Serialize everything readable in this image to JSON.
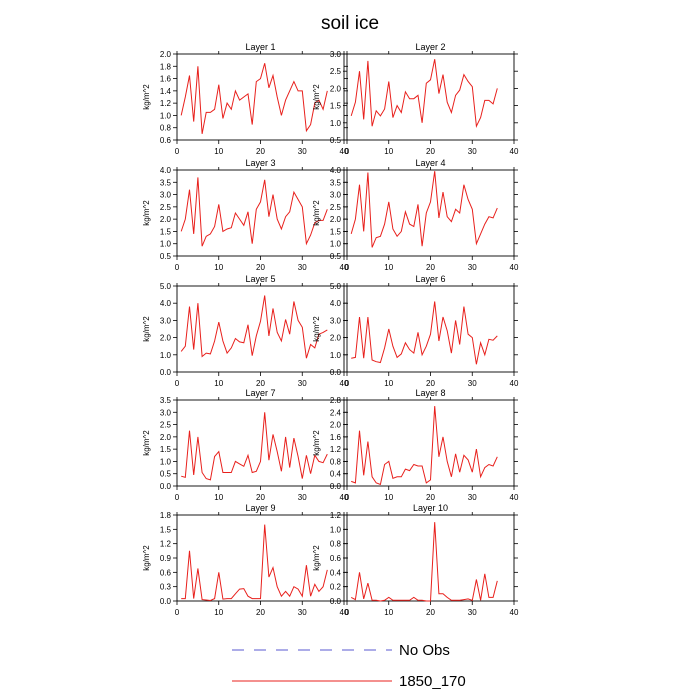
{
  "chart_data": {
    "type": "line",
    "title": "soil ice",
    "series_color": "#e8201c",
    "no_obs_color": "#5a5ad0",
    "legend": {
      "placement": "bottom-center",
      "entries": [
        {
          "label": "No Obs",
          "style": "dashed",
          "color": "#5a5ad0"
        },
        {
          "label": "1850_170",
          "style": "solid",
          "color": "#e8201c"
        }
      ]
    },
    "x": [
      1,
      2,
      3,
      4,
      5,
      6,
      7,
      8,
      9,
      10,
      11,
      12,
      13,
      14,
      15,
      16,
      17,
      18,
      19,
      20,
      21,
      22,
      23,
      24,
      25,
      26,
      27,
      28,
      29,
      30,
      31,
      32,
      33,
      34,
      35,
      36
    ],
    "xlim": [
      0,
      40
    ],
    "xticks": [
      "0",
      "10",
      "20",
      "30",
      "40"
    ],
    "panels": [
      {
        "title": "Layer 1",
        "ylabel": "kg/m^2",
        "ylim": [
          0.6,
          2.0
        ],
        "yticks": [
          "0.6",
          "0.8",
          "1.0",
          "1.2",
          "1.4",
          "1.6",
          "1.8",
          "2.0"
        ],
        "values": [
          1.0,
          1.3,
          1.65,
          0.9,
          1.8,
          0.7,
          1.05,
          1.05,
          1.1,
          1.5,
          0.95,
          1.2,
          1.1,
          1.4,
          1.25,
          1.3,
          1.35,
          0.85,
          1.55,
          1.6,
          1.85,
          1.45,
          1.65,
          1.3,
          1.0,
          1.25,
          1.4,
          1.55,
          1.4,
          1.4,
          0.75,
          0.85,
          1.2,
          1.25,
          1.1,
          1.4
        ]
      },
      {
        "title": "Layer 2",
        "ylabel": "kg/m^2",
        "ylim": [
          0.5,
          3.0
        ],
        "yticks": [
          "0.5",
          "1.0",
          "1.5",
          "2.0",
          "2.5",
          "3.0"
        ],
        "values": [
          1.2,
          1.6,
          2.5,
          1.1,
          2.8,
          0.9,
          1.35,
          1.2,
          1.4,
          2.2,
          1.15,
          1.5,
          1.3,
          1.9,
          1.7,
          1.7,
          1.8,
          1.0,
          2.15,
          2.25,
          2.85,
          1.85,
          2.4,
          1.6,
          1.3,
          1.8,
          1.95,
          2.4,
          2.2,
          2.05,
          0.9,
          1.15,
          1.65,
          1.65,
          1.55,
          2.0
        ]
      },
      {
        "title": "Layer 3",
        "ylabel": "kg/m^2",
        "ylim": [
          0.5,
          4.0
        ],
        "yticks": [
          "0.5",
          "1.0",
          "1.5",
          "2.0",
          "2.5",
          "3.0",
          "3.5",
          "4.0"
        ],
        "values": [
          1.5,
          2.0,
          3.2,
          1.4,
          3.7,
          0.9,
          1.3,
          1.4,
          1.7,
          2.6,
          1.5,
          1.6,
          1.65,
          2.25,
          2.0,
          1.75,
          2.3,
          1.0,
          2.4,
          2.7,
          3.6,
          2.1,
          3.0,
          2.0,
          1.6,
          2.1,
          2.3,
          3.1,
          2.8,
          2.5,
          1.0,
          1.35,
          1.85,
          1.95,
          1.95,
          2.4
        ]
      },
      {
        "title": "Layer 4",
        "ylabel": "kg/m^2",
        "ylim": [
          0.5,
          4.0
        ],
        "yticks": [
          "0.5",
          "1.0",
          "1.5",
          "2.0",
          "2.5",
          "3.0",
          "3.5",
          "4.0"
        ],
        "values": [
          1.4,
          2.0,
          3.4,
          1.5,
          3.9,
          0.85,
          1.25,
          1.3,
          1.8,
          2.7,
          1.6,
          1.3,
          1.5,
          2.3,
          1.8,
          1.7,
          2.6,
          0.9,
          2.25,
          2.7,
          3.95,
          2.05,
          3.1,
          2.1,
          1.9,
          2.4,
          2.25,
          3.4,
          2.8,
          2.4,
          1.0,
          1.4,
          1.8,
          2.1,
          2.05,
          2.45
        ]
      },
      {
        "title": "Layer 5",
        "ylabel": "kg/m^2",
        "ylim": [
          0.0,
          5.0
        ],
        "yticks": [
          "0.0",
          "1.0",
          "2.0",
          "3.0",
          "4.0",
          "5.0"
        ],
        "values": [
          1.2,
          1.5,
          3.8,
          1.3,
          4.0,
          0.9,
          1.1,
          1.05,
          1.8,
          2.9,
          1.8,
          1.1,
          1.4,
          1.95,
          1.75,
          1.7,
          2.75,
          0.95,
          2.1,
          2.95,
          4.45,
          2.1,
          3.7,
          2.3,
          1.8,
          3.05,
          2.2,
          4.1,
          3.0,
          2.6,
          0.8,
          1.6,
          1.4,
          2.2,
          2.3,
          2.45
        ]
      },
      {
        "title": "Layer 6",
        "ylabel": "kg/m^2",
        "ylim": [
          0.0,
          5.0
        ],
        "yticks": [
          "0.0",
          "1.0",
          "2.0",
          "3.0",
          "4.0",
          "5.0"
        ],
        "values": [
          0.8,
          0.85,
          3.2,
          0.8,
          3.2,
          0.7,
          0.6,
          0.55,
          1.4,
          2.5,
          1.5,
          0.85,
          1.05,
          1.7,
          1.3,
          1.1,
          2.3,
          1.0,
          1.5,
          2.2,
          4.1,
          1.8,
          3.2,
          2.4,
          1.1,
          3.0,
          1.6,
          3.8,
          2.2,
          2.0,
          0.45,
          1.7,
          1.0,
          1.9,
          1.85,
          2.1
        ]
      },
      {
        "title": "Layer 7",
        "ylabel": "kg/m^2",
        "ylim": [
          0.0,
          3.5
        ],
        "yticks": [
          "0.0",
          "0.5",
          "1.0",
          "1.5",
          "2.0",
          "2.5",
          "3.0",
          "3.5"
        ],
        "values": [
          0.4,
          0.35,
          2.25,
          0.45,
          2.0,
          0.55,
          0.3,
          0.25,
          1.2,
          1.4,
          0.55,
          0.55,
          0.55,
          1.0,
          0.9,
          0.8,
          1.25,
          0.55,
          0.6,
          1.0,
          3.0,
          1.05,
          2.1,
          1.4,
          0.6,
          2.0,
          0.75,
          1.95,
          1.2,
          0.3,
          1.25,
          0.5,
          1.25,
          1.0,
          0.95,
          1.3
        ]
      },
      {
        "title": "Layer 8",
        "ylabel": "kg/m^2",
        "ylim": [
          0.0,
          2.8
        ],
        "yticks": [
          "0.0",
          "0.4",
          "0.8",
          "1.2",
          "1.6",
          "2.0",
          "2.4",
          "2.8"
        ],
        "values": [
          0.15,
          0.1,
          1.8,
          0.35,
          1.45,
          0.3,
          0.1,
          0.05,
          0.7,
          0.8,
          0.25,
          0.3,
          0.3,
          0.55,
          0.5,
          0.7,
          0.65,
          0.65,
          0.1,
          0.2,
          2.6,
          0.95,
          1.6,
          0.8,
          0.3,
          1.05,
          0.45,
          1.0,
          0.85,
          0.45,
          1.2,
          0.3,
          0.6,
          0.7,
          0.65,
          0.95
        ]
      },
      {
        "title": "Layer 9",
        "ylabel": "kg/m^2",
        "ylim": [
          0.0,
          1.8
        ],
        "yticks": [
          "0.0",
          "0.3",
          "0.6",
          "0.9",
          "1.2",
          "1.5",
          "1.8"
        ],
        "values": [
          0.05,
          0.05,
          1.05,
          0.05,
          0.68,
          0.03,
          0.02,
          0.01,
          0.05,
          0.6,
          0.04,
          0.05,
          0.05,
          0.15,
          0.25,
          0.26,
          0.1,
          0.05,
          0.05,
          0.05,
          1.6,
          0.5,
          0.7,
          0.3,
          0.1,
          0.2,
          0.1,
          0.3,
          0.25,
          0.1,
          0.75,
          0.1,
          0.35,
          0.2,
          0.3,
          0.65
        ]
      },
      {
        "title": "Layer 10",
        "ylabel": "kg/m^2",
        "ylim": [
          0.0,
          1.2
        ],
        "yticks": [
          "0.0",
          "0.2",
          "0.4",
          "0.6",
          "0.8",
          "1.0",
          "1.2"
        ],
        "values": [
          0.05,
          0.02,
          0.4,
          0.03,
          0.25,
          0.01,
          0.01,
          0.0,
          0.01,
          0.05,
          0.01,
          0.01,
          0.01,
          0.01,
          0.01,
          0.05,
          0.01,
          0.01,
          0.0,
          0.0,
          1.1,
          0.1,
          0.1,
          0.05,
          0.01,
          0.01,
          0.01,
          0.02,
          0.03,
          0.01,
          0.3,
          0.01,
          0.38,
          0.05,
          0.05,
          0.28
        ]
      }
    ]
  }
}
